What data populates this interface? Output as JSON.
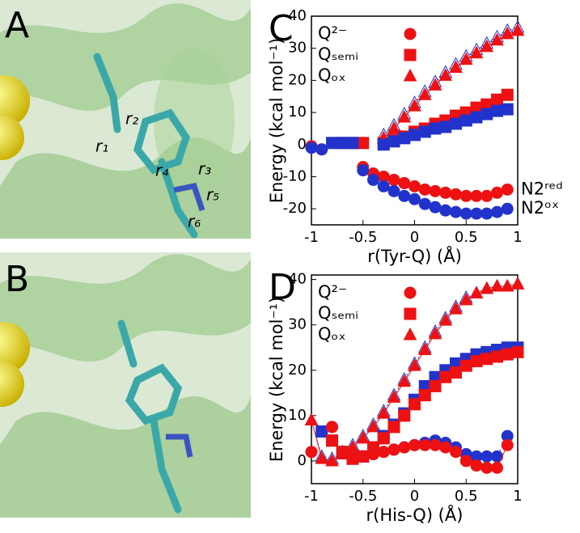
{
  "images": [
    {
      "label": "A",
      "annotations": [
        "r₁",
        "r₂",
        "r₃",
        "r₄",
        "r₅",
        "r₆"
      ]
    },
    {
      "label": "B"
    }
  ],
  "chart_data": [
    {
      "type": "scatter",
      "panel_label": "C",
      "xlabel": "r(Tyr-Q) (Å)",
      "ylabel": "Energy (kcal mol⁻¹)",
      "xlim": [
        -1,
        1
      ],
      "ylim": [
        -25,
        40
      ],
      "xticks": [
        -1,
        -0.5,
        0,
        0.5,
        1
      ],
      "yticks": [
        -20,
        -10,
        0,
        10,
        20,
        30,
        40
      ],
      "legend": [
        {
          "name": "Q²⁻",
          "marker": "circle"
        },
        {
          "name": "Qₛₑₘᵢ",
          "marker": "square"
        },
        {
          "name": "Qₒₓ",
          "marker": "triangle"
        }
      ],
      "annotations": [
        "N2ʳᵉᵈ",
        "N2ᵒˣ"
      ],
      "x": [
        -1,
        -0.9,
        -0.8,
        -0.7,
        -0.6,
        -0.5,
        -0.4,
        -0.3,
        -0.2,
        -0.1,
        0,
        0.1,
        0.2,
        0.3,
        0.4,
        0.5,
        0.6,
        0.7,
        0.8,
        0.9,
        1
      ],
      "series": [
        {
          "marker": "triangle-open",
          "color": "#2233cc",
          "line_style": "dotted",
          "values": [
            null,
            null,
            null,
            null,
            null,
            null,
            null,
            3,
            6,
            9.5,
            13,
            16.5,
            19.5,
            22.5,
            25,
            27.5,
            29.5,
            31.5,
            33.5,
            35.5,
            36.5
          ]
        },
        {
          "marker": "triangle",
          "color": "#ee1111",
          "line_style": "solid",
          "values": [
            null,
            null,
            null,
            null,
            null,
            null,
            null,
            2,
            5,
            8.5,
            12,
            15.5,
            18.5,
            21.5,
            24,
            26.5,
            28.5,
            30.5,
            32.5,
            34.5,
            35.5
          ]
        },
        {
          "marker": "square",
          "color": "#ee1111",
          "line_style": "solid",
          "values": [
            null,
            null,
            null,
            0.5,
            0.5,
            0.5,
            null,
            0.5,
            1.5,
            2.5,
            4,
            5,
            6.5,
            7.5,
            9,
            10,
            11.5,
            12.5,
            14,
            15.5,
            null
          ]
        },
        {
          "marker": "square",
          "color": "#2233cc",
          "line_style": "dotted",
          "values": [
            null,
            null,
            0.5,
            0.5,
            0.5,
            null,
            null,
            0,
            1,
            2,
            3,
            4,
            5,
            5.5,
            6.5,
            7.5,
            8.5,
            9.5,
            10.5,
            11,
            null
          ]
        },
        {
          "marker": "circle",
          "color": "#ee1111",
          "line_style": "solid",
          "values": [
            -0.5,
            -1.5,
            null,
            null,
            null,
            -7,
            -9,
            -10,
            -11,
            -12,
            -13,
            -14,
            -14.5,
            -15,
            -15.5,
            -16,
            -16,
            -16,
            -15,
            -14,
            null
          ]
        },
        {
          "marker": "circle",
          "color": "#2233cc",
          "line_style": "dotted",
          "values": [
            -1,
            -1.5,
            null,
            null,
            null,
            -8,
            -11,
            -13,
            -14.5,
            -16,
            -17,
            -18.5,
            -19.5,
            -20.5,
            -21,
            -21.5,
            -21.5,
            -21.5,
            -21,
            -20,
            null
          ]
        }
      ]
    },
    {
      "type": "scatter",
      "panel_label": "D",
      "xlabel": "r(His-Q) (Å)",
      "ylabel": "Energy (kcal mol⁻¹)",
      "xlim": [
        -1,
        1
      ],
      "ylim": [
        -5,
        41
      ],
      "xticks": [
        -1,
        -0.5,
        0,
        0.5,
        1
      ],
      "yticks": [
        0,
        10,
        20,
        30,
        40
      ],
      "legend": [
        {
          "name": "Q²⁻",
          "marker": "circle"
        },
        {
          "name": "Qₛₑₘᵢ",
          "marker": "square"
        },
        {
          "name": "Qₒₓ",
          "marker": "triangle"
        }
      ],
      "x": [
        -1,
        -0.9,
        -0.8,
        -0.7,
        -0.6,
        -0.5,
        -0.4,
        -0.3,
        -0.2,
        -0.1,
        0,
        0.1,
        0.2,
        0.3,
        0.4,
        0.5,
        0.6,
        0.7,
        0.8,
        0.9,
        1
      ],
      "series": [
        {
          "marker": "triangle-open",
          "color": "#2233cc",
          "line_style": "dotted",
          "values": [
            9,
            1,
            0.5,
            2,
            3.5,
            5.5,
            8,
            11,
            14.5,
            18,
            21.5,
            25,
            28.5,
            31.5,
            34,
            36,
            37,
            38,
            38.5,
            38.5,
            39
          ]
        },
        {
          "marker": "triangle",
          "color": "#ee1111",
          "line_style": "solid",
          "values": [
            9,
            0.5,
            0,
            1.5,
            3,
            5,
            7.5,
            10.5,
            14,
            17.5,
            21,
            24.5,
            28,
            31,
            33.5,
            35.5,
            37,
            38,
            38.5,
            38.5,
            39
          ]
        },
        {
          "marker": "square",
          "color": "#2233cc",
          "line_style": "dotted",
          "values": [
            null,
            6.5,
            4.5,
            2,
            0.5,
            1,
            3,
            5.5,
            8,
            10.5,
            13.5,
            16.5,
            18.5,
            20,
            21.5,
            22.5,
            23.5,
            24,
            24.5,
            25,
            25
          ]
        },
        {
          "marker": "square",
          "color": "#ee1111",
          "line_style": "solid",
          "values": [
            null,
            null,
            4.5,
            2,
            0.5,
            1,
            3,
            5,
            7.5,
            10,
            12.5,
            14.5,
            16.5,
            18.5,
            19.5,
            21,
            22,
            22.5,
            23,
            23.5,
            24
          ]
        },
        {
          "marker": "circle",
          "color": "#2233cc",
          "line_style": "dotted",
          "values": [
            null,
            null,
            7.5,
            null,
            null,
            1,
            1.5,
            2,
            2.5,
            3,
            3.5,
            4,
            4.5,
            4,
            3,
            1.5,
            1,
            1,
            1,
            5.5,
            null
          ]
        },
        {
          "marker": "circle",
          "color": "#ee1111",
          "line_style": "solid",
          "values": [
            2,
            null,
            7.5,
            null,
            null,
            1,
            1.5,
            2,
            2.5,
            3,
            3.5,
            3.5,
            3.5,
            3,
            2,
            0,
            -1,
            -1.5,
            -1.5,
            3.5,
            null
          ]
        }
      ]
    }
  ]
}
